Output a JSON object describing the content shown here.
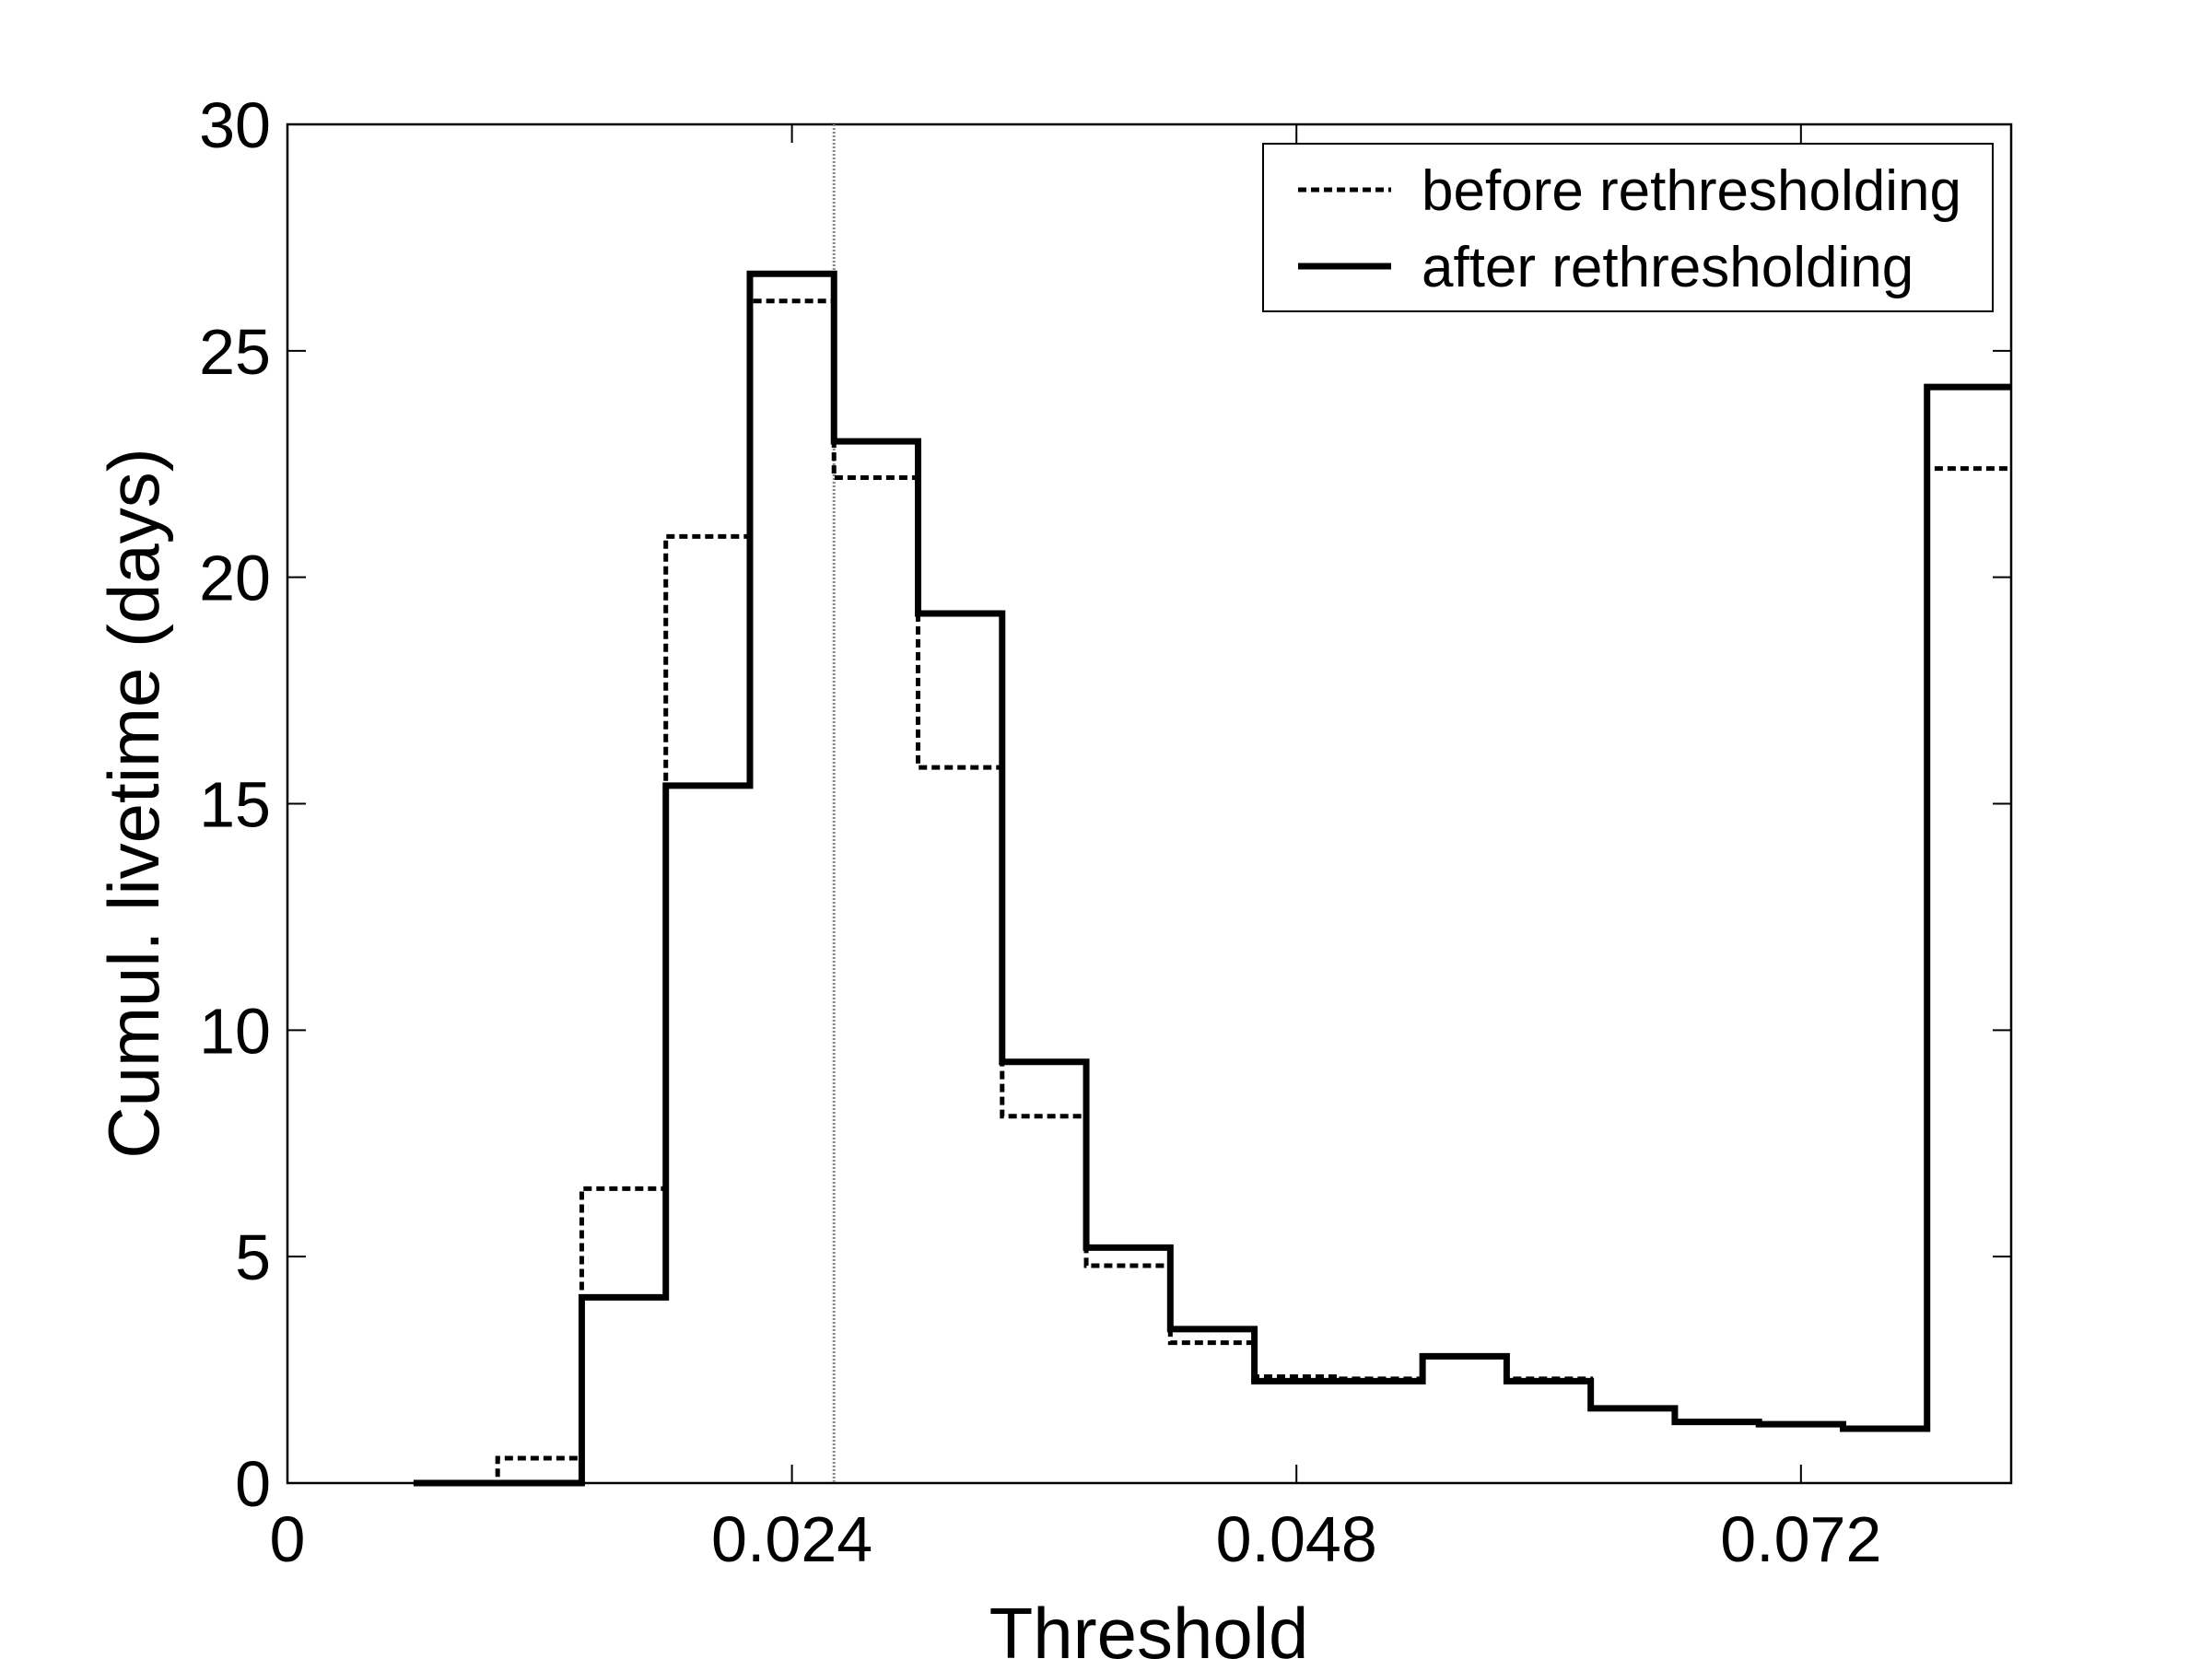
{
  "chart_data": {
    "type": "histogram-step",
    "title": "",
    "xlabel": "Threshold",
    "ylabel": "Cumul. livetime (days)",
    "xlim": [
      0,
      0.082
    ],
    "ylim": [
      0,
      30
    ],
    "xticks": [
      0,
      0.024,
      0.048,
      0.072
    ],
    "xtick_labels": [
      "0",
      "0.024",
      "0.048",
      "0.072"
    ],
    "yticks": [
      0,
      5,
      10,
      15,
      20,
      25,
      30
    ],
    "ytick_labels": [
      "0",
      "5",
      "10",
      "15",
      "20",
      "25",
      "30"
    ],
    "grid": false,
    "legend_position": "top-right",
    "bin_edges": [
      0.006,
      0.01,
      0.014,
      0.018,
      0.022,
      0.026,
      0.03,
      0.034,
      0.038,
      0.042,
      0.046,
      0.05,
      0.054,
      0.058,
      0.062,
      0.066,
      0.07,
      0.074,
      0.078,
      0.082
    ],
    "series": [
      {
        "name": "before rethresholding",
        "style": "dashed",
        "values": [
          0,
          0.55,
          6.5,
          20.9,
          26.1,
          22.2,
          15.8,
          8.1,
          4.8,
          3.1,
          2.35,
          2.3,
          2.8,
          2.3,
          1.65,
          1.35,
          1.3,
          1.2,
          22.4
        ]
      },
      {
        "name": "after rethresholding",
        "style": "solid",
        "values": [
          0,
          0,
          4.1,
          15.4,
          26.7,
          23.0,
          19.2,
          9.3,
          5.2,
          3.4,
          2.25,
          2.25,
          2.8,
          2.25,
          1.65,
          1.35,
          1.3,
          1.2,
          24.2
        ]
      }
    ],
    "reference_line": {
      "x": 0.026,
      "style": "dotted"
    }
  }
}
